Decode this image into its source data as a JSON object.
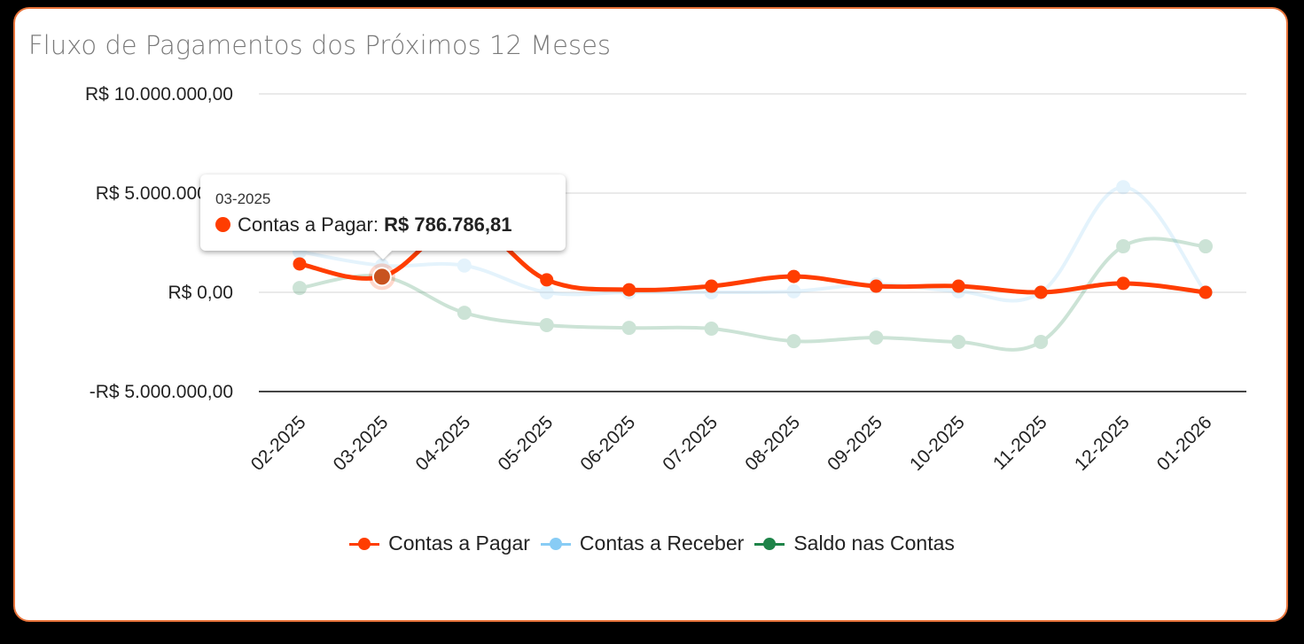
{
  "card": {
    "title": "Fluxo de Pagamentos dos Próximos 12 Meses"
  },
  "tooltip": {
    "date": "03-2025",
    "series": "Contas a Pagar",
    "separator": ":",
    "value": "R$ 786.786,81",
    "color": "#ff3d00"
  },
  "legend": [
    {
      "label": "Contas a Pagar",
      "color": "#ff3d00"
    },
    {
      "label": "Contas a Receber",
      "color": "#88ccf5"
    },
    {
      "label": "Saldo nas Contas",
      "color": "#1e8449"
    }
  ],
  "chart_data": {
    "type": "line",
    "title": "Fluxo de Pagamentos dos Próximos 12 Meses",
    "xlabel": "",
    "ylabel": "",
    "ylim": [
      -5000000,
      10000000
    ],
    "yticks": [
      {
        "value": 10000000,
        "label": "R$ 10.000.000,00"
      },
      {
        "value": 5000000,
        "label": "R$ 5.000.000,00"
      },
      {
        "value": 0,
        "label": "R$ 0,00"
      },
      {
        "value": -5000000,
        "label": "-R$ 5.000.000,00"
      }
    ],
    "grid": true,
    "legend_position": "bottom",
    "categories": [
      "02-2025",
      "03-2025",
      "04-2025",
      "05-2025",
      "06-2025",
      "07-2025",
      "08-2025",
      "09-2025",
      "10-2025",
      "11-2025",
      "12-2025",
      "01-2026"
    ],
    "series": [
      {
        "name": "Contas a Pagar",
        "color": "#ff3d00",
        "highlighted": true,
        "values": [
          1430000,
          786786.81,
          3500000,
          630000,
          130000,
          310000,
          800000,
          310000,
          310000,
          0,
          450000,
          0
        ]
      },
      {
        "name": "Contas a Receber",
        "color": "#88ccf5",
        "highlighted": false,
        "values": [
          2050000,
          1350000,
          1350000,
          0,
          0,
          0,
          50000,
          400000,
          50000,
          0,
          5300000,
          0
        ]
      },
      {
        "name": "Saldo nas Contas",
        "color": "#1e8449",
        "highlighted": false,
        "values": [
          220000,
          800000,
          -1030000,
          -1650000,
          -1790000,
          -1830000,
          -2460000,
          -2280000,
          -2500000,
          -2500000,
          2320000,
          2320000
        ]
      }
    ],
    "active_point": {
      "series": "Contas a Pagar",
      "category": "03-2025",
      "value": 786786.81
    }
  }
}
